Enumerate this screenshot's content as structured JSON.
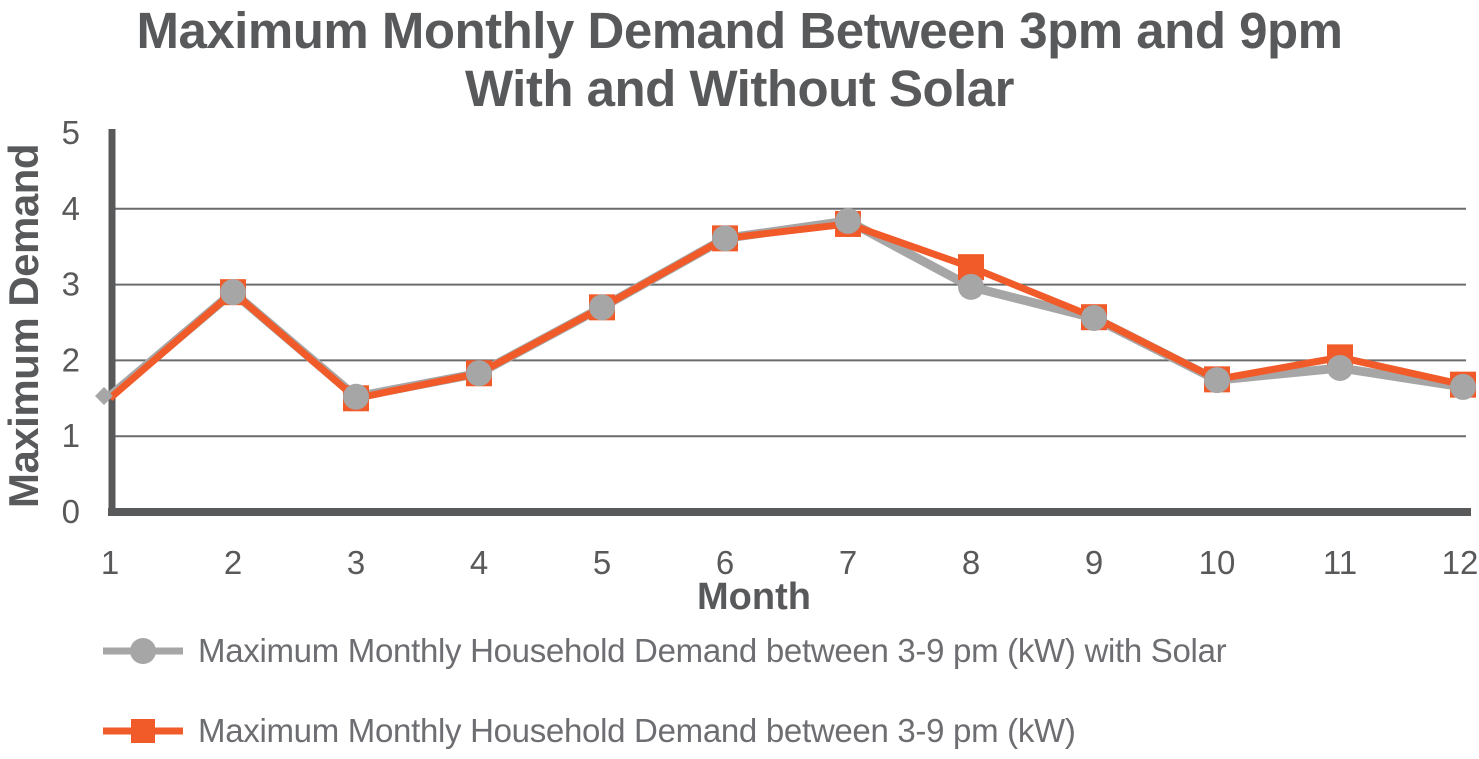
{
  "title": {
    "line1": "Maximum Monthly Demand Between 3pm and 9pm",
    "line2": "With and Without Solar"
  },
  "axes": {
    "y_label": "Maximum Demand",
    "x_label": "Month",
    "y_ticks": [
      "5",
      "4",
      "3",
      "2",
      "1",
      "0"
    ],
    "x_ticks": [
      "1",
      "2",
      "3",
      "4",
      "5",
      "6",
      "7",
      "8",
      "9",
      "10",
      "11",
      "12"
    ]
  },
  "legend": [
    {
      "label": "Maximum Monthly Household Demand between 3-9 pm (kW) with Solar",
      "marker": "circle",
      "color": "#A6A6A6"
    },
    {
      "label": "Maximum Monthly Household Demand between 3-9 pm (kW)",
      "marker": "square",
      "color": "#F15A29"
    }
  ],
  "colors": {
    "series_with_solar": "#A6A6A6",
    "series_without_solar": "#F15A29",
    "axis": "#58595B",
    "gridline": "#6B6C6E",
    "title_text": "#58595B",
    "legend_text": "#6D6E71"
  },
  "chart_data": {
    "type": "line",
    "title": "Maximum Monthly Demand Between 3pm and 9pm With and Without Solar",
    "xlabel": "Month",
    "ylabel": "Maximum Demand",
    "x": [
      1,
      2,
      3,
      4,
      5,
      6,
      7,
      8,
      9,
      10,
      11,
      12
    ],
    "xlim": [
      1,
      12
    ],
    "ylim": [
      0,
      5
    ],
    "y_tick_step": 1,
    "grid": "horizontal",
    "gridline_values": [
      1,
      2,
      3,
      4
    ],
    "legend_position": "bottom-left",
    "series": [
      {
        "name": "Maximum Monthly Household Demand between 3-9 pm (kW) with Solar",
        "marker": "circle",
        "color": "#A6A6A6",
        "values": [
          1.53,
          2.9,
          1.52,
          1.83,
          2.7,
          3.61,
          3.84,
          2.97,
          2.56,
          1.74,
          1.9,
          1.65
        ]
      },
      {
        "name": "Maximum Monthly Household Demand between 3-9 pm (kW)",
        "marker": "square",
        "color": "#F15A29",
        "values": [
          1.5,
          2.9,
          1.5,
          1.83,
          2.7,
          3.61,
          3.8,
          3.23,
          2.57,
          1.75,
          2.04,
          1.68
        ]
      }
    ]
  }
}
